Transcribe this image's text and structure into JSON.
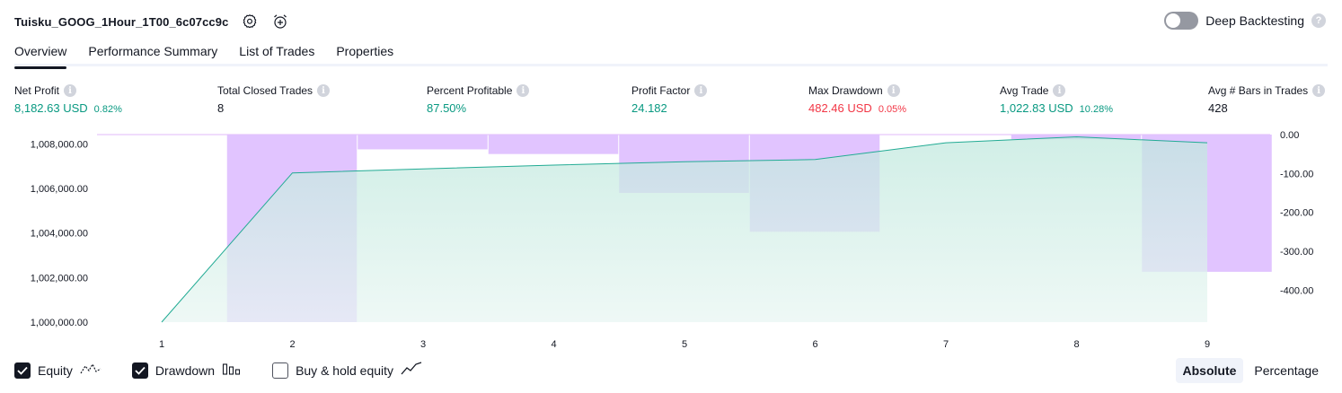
{
  "header": {
    "title": "Tuisku_GOOG_1Hour_1T00_6c07cc9c",
    "settings_icon": "settings-gear-icon",
    "alert_icon": "add-alert-clock-icon"
  },
  "deep_backtesting": {
    "label": "Deep Backtesting",
    "enabled": false,
    "help_icon": "?"
  },
  "tabs": [
    {
      "label": "Overview",
      "active": true
    },
    {
      "label": "Performance Summary",
      "active": false
    },
    {
      "label": "List of Trades",
      "active": false
    },
    {
      "label": "Properties",
      "active": false
    }
  ],
  "metrics": [
    {
      "label": "Net Profit",
      "value": "8,182.63 USD",
      "pct": "0.82%",
      "tone": "pos"
    },
    {
      "label": "Total Closed Trades",
      "value": "8",
      "pct": "",
      "tone": "neutral"
    },
    {
      "label": "Percent Profitable",
      "value": "87.50%",
      "pct": "",
      "tone": "pos"
    },
    {
      "label": "Profit Factor",
      "value": "24.182",
      "pct": "",
      "tone": "pos"
    },
    {
      "label": "Max Drawdown",
      "value": "482.46 USD",
      "pct": "0.05%",
      "tone": "neg"
    },
    {
      "label": "Avg Trade",
      "value": "1,022.83 USD",
      "pct": "10.28%",
      "tone": "pos"
    },
    {
      "label": "Avg # Bars in Trades",
      "value": "428",
      "pct": "",
      "tone": "neutral"
    }
  ],
  "info_glyph": "i",
  "chart_data": {
    "type": "area",
    "x": [
      1,
      2,
      3,
      4,
      5,
      6,
      7,
      8,
      9
    ],
    "x_tick_labels": [
      "1",
      "2",
      "3",
      "4",
      "5",
      "6",
      "7",
      "8",
      "9"
    ],
    "series": [
      {
        "name": "Equity",
        "axis": "left",
        "values": [
          1000000,
          1006700,
          1006880,
          1007050,
          1007200,
          1007300,
          1008050,
          1008320,
          1008050
        ],
        "color": "#22ab94"
      },
      {
        "name": "Drawdown",
        "axis": "right",
        "kind": "bar",
        "values": [
          null,
          -482.46,
          -38,
          -50,
          -150,
          -250,
          null,
          -12,
          -353
        ],
        "color": "#ce93d8"
      }
    ],
    "y_left": {
      "ticks": [
        1000000,
        1002000,
        1004000,
        1006000,
        1008000
      ],
      "tick_labels": [
        "1,000,000.00",
        "1,002,000.00",
        "1,004,000.00",
        "1,006,000.00",
        "1,008,000.00"
      ],
      "ylim": [
        1000000,
        1008420
      ]
    },
    "y_right": {
      "ticks": [
        0,
        -100,
        -200,
        -300,
        -400
      ],
      "tick_labels": [
        "0.00",
        "-100.00",
        "-200.00",
        "-300.00",
        "-400.00"
      ],
      "ylim": [
        -482.46,
        0
      ]
    },
    "grid": false,
    "colors": {
      "equity_line": "#22ab94",
      "equity_fill": "#c2ebe0",
      "drawdown_fill": "#e1c4ff",
      "drawdown_overlap": "#c6b8ec",
      "drawdown_top_line": "#e0b8f8"
    }
  },
  "legend": [
    {
      "label": "Equity",
      "checked": true,
      "icon": "equity-line-icon"
    },
    {
      "label": "Drawdown",
      "checked": true,
      "icon": "drawdown-bars-icon"
    },
    {
      "label": "Buy & hold equity",
      "checked": false,
      "icon": "buy-hold-line-icon"
    }
  ],
  "modes": [
    {
      "label": "Absolute",
      "active": true
    },
    {
      "label": "Percentage",
      "active": false
    }
  ]
}
